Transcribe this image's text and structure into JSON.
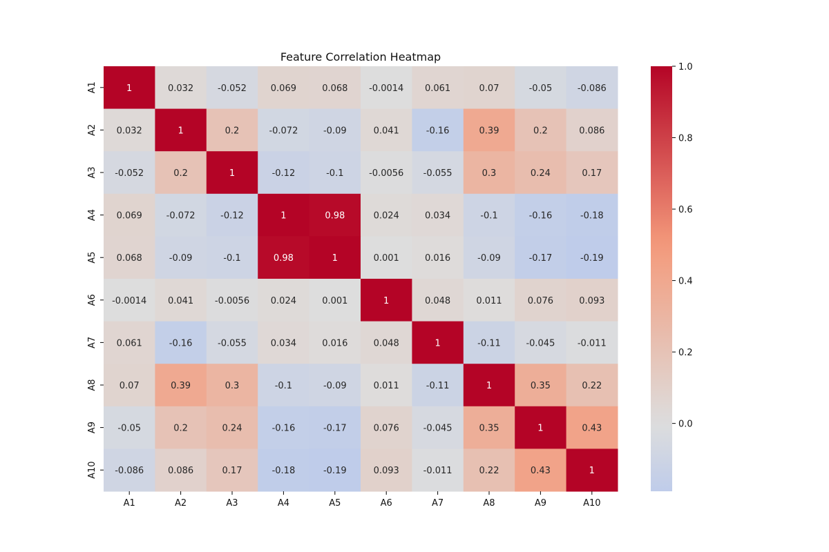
{
  "chart_data": {
    "type": "heatmap",
    "title": "Feature Correlation Heatmap",
    "xlabel": "",
    "ylabel": "",
    "x_categories": [
      "A1",
      "A2",
      "A3",
      "A4",
      "A5",
      "A6",
      "A7",
      "A8",
      "A9",
      "A10"
    ],
    "y_categories": [
      "A1",
      "A2",
      "A3",
      "A4",
      "A5",
      "A6",
      "A7",
      "A8",
      "A9",
      "A10"
    ],
    "values": [
      [
        "1",
        "0.032",
        "-0.052",
        "0.069",
        "0.068",
        "-0.0014",
        "0.061",
        "0.07",
        "-0.05",
        "-0.086"
      ],
      [
        "0.032",
        "1",
        "0.2",
        "-0.072",
        "-0.09",
        "0.041",
        "-0.16",
        "0.39",
        "0.2",
        "0.086"
      ],
      [
        "-0.052",
        "0.2",
        "1",
        "-0.12",
        "-0.1",
        "-0.0056",
        "-0.055",
        "0.3",
        "0.24",
        "0.17"
      ],
      [
        "0.069",
        "-0.072",
        "-0.12",
        "1",
        "0.98",
        "0.024",
        "0.034",
        "-0.1",
        "-0.16",
        "-0.18"
      ],
      [
        "0.068",
        "-0.09",
        "-0.1",
        "0.98",
        "1",
        "0.001",
        "0.016",
        "-0.09",
        "-0.17",
        "-0.19"
      ],
      [
        "-0.0014",
        "0.041",
        "-0.0056",
        "0.024",
        "0.001",
        "1",
        "0.048",
        "0.011",
        "0.076",
        "0.093"
      ],
      [
        "0.061",
        "-0.16",
        "-0.055",
        "0.034",
        "0.016",
        "0.048",
        "1",
        "-0.11",
        "-0.045",
        "-0.011"
      ],
      [
        "0.07",
        "0.39",
        "0.3",
        "-0.1",
        "-0.09",
        "0.011",
        "-0.11",
        "1",
        "0.35",
        "0.22"
      ],
      [
        "-0.05",
        "0.2",
        "0.24",
        "-0.16",
        "-0.17",
        "0.076",
        "-0.045",
        "0.35",
        "1",
        "0.43"
      ],
      [
        "-0.086",
        "0.086",
        "0.17",
        "-0.18",
        "-0.19",
        "0.093",
        "-0.011",
        "0.22",
        "0.43",
        "1"
      ]
    ],
    "colormap": "coolwarm",
    "colorbar": {
      "range": [
        -0.19,
        1.0
      ],
      "ticks": [
        "1.0",
        "0.8",
        "0.6",
        "0.4",
        "0.2",
        "0.0"
      ],
      "tick_values": [
        1.0,
        0.8,
        0.6,
        0.4,
        0.2,
        0.0
      ]
    },
    "legend": "none",
    "grid": false
  }
}
